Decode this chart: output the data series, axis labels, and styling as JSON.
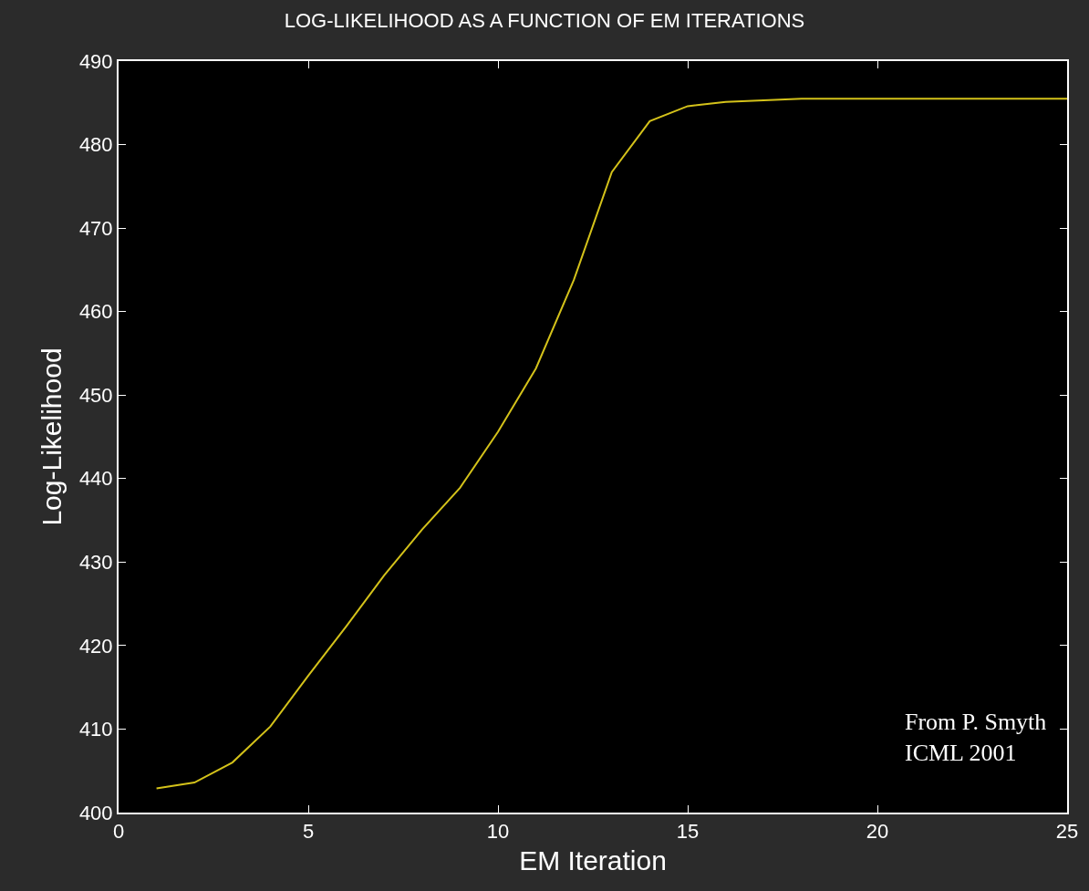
{
  "chart_data": {
    "type": "line",
    "title": "LOG-LIKELIHOOD AS A FUNCTION OF EM ITERATIONS",
    "xlabel": "EM Iteration",
    "ylabel": "Log-Likelihood",
    "x": [
      1,
      2,
      3,
      4,
      5,
      6,
      7,
      8,
      9,
      10,
      11,
      12,
      13,
      14,
      15,
      16,
      17,
      18,
      19,
      20,
      21,
      22,
      23,
      24,
      25
    ],
    "series": [
      {
        "color": "#d4c21a",
        "values": [
          402.9,
          403.6,
          406.0,
          410.3,
          416.4,
          422.3,
          428.4,
          433.9,
          438.9,
          445.6,
          453.2,
          463.8,
          476.7,
          482.8,
          484.6,
          485.1,
          485.3,
          485.5,
          485.5,
          485.5,
          485.5,
          485.5,
          485.5,
          485.5,
          485.5
        ]
      }
    ],
    "xlim": [
      0,
      25
    ],
    "xticks": [
      0,
      5,
      10,
      15,
      20,
      25
    ],
    "ylim": [
      400,
      490
    ],
    "yticks": [
      400,
      410,
      420,
      430,
      440,
      450,
      460,
      470,
      480,
      490
    ],
    "grid": false,
    "marker": "none",
    "line_style": "solid",
    "annotations": [
      "From P. Smyth\nICML 2001"
    ]
  }
}
